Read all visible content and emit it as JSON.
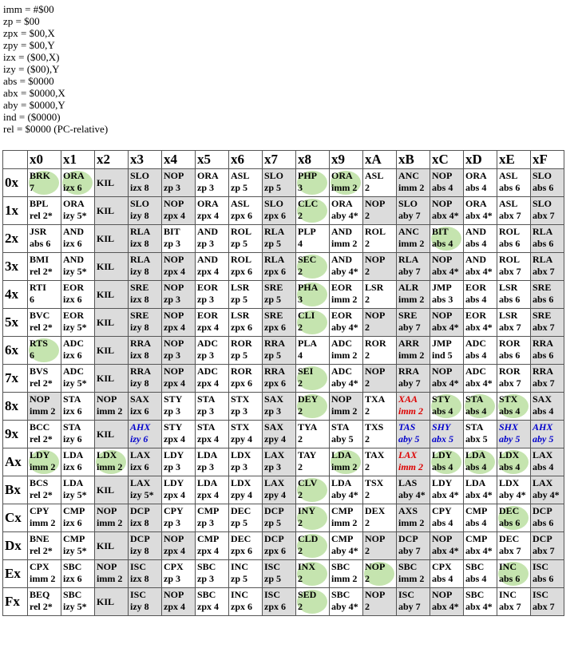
{
  "legend": [
    "imm = #$00",
    "zp = $00",
    "zpx = $00,X",
    "zpy = $00,Y",
    "izx = ($00,X)",
    "izy = ($00),Y",
    "abs = $0000",
    "abx = $0000,X",
    "aby = $0000,Y",
    "ind = ($0000)",
    "rel = $0000 (PC-relative)"
  ],
  "columns": [
    "x0",
    "x1",
    "x2",
    "x3",
    "x4",
    "x5",
    "x6",
    "x7",
    "x8",
    "x9",
    "xA",
    "xB",
    "xC",
    "xD",
    "xE",
    "xF"
  ],
  "colors": {
    "highlight": "#96cd6e",
    "illegal_gray": "#dcdcdc",
    "unstable_blue": "#0000cc",
    "unstable_red": "#dd0000"
  },
  "rows": [
    {
      "label": "0x",
      "cells": [
        [
          "BRK",
          "7",
          "h"
        ],
        [
          "ORA",
          "izx 6",
          "h"
        ],
        [
          "KIL",
          "",
          "k"
        ],
        [
          "SLO",
          "izx 8",
          "i"
        ],
        [
          "NOP",
          "zp 3",
          "i"
        ],
        [
          "ORA",
          "zp 3",
          ""
        ],
        [
          "ASL",
          "zp 5",
          ""
        ],
        [
          "SLO",
          "zp 5",
          "i"
        ],
        [
          "PHP",
          "3",
          "h"
        ],
        [
          "ORA",
          "imm 2",
          "h"
        ],
        [
          "ASL",
          "2",
          ""
        ],
        [
          "ANC",
          "imm 2",
          "i"
        ],
        [
          "NOP",
          "abs 4",
          "i"
        ],
        [
          "ORA",
          "abs 4",
          ""
        ],
        [
          "ASL",
          "abs 6",
          ""
        ],
        [
          "SLO",
          "abs 6",
          "i"
        ]
      ]
    },
    {
      "label": "1x",
      "cells": [
        [
          "BPL",
          "rel 2*",
          ""
        ],
        [
          "ORA",
          "izy 5*",
          ""
        ],
        [
          "KIL",
          "",
          "k"
        ],
        [
          "SLO",
          "izy 8",
          "i"
        ],
        [
          "NOP",
          "zpx 4",
          "i"
        ],
        [
          "ORA",
          "zpx 4",
          ""
        ],
        [
          "ASL",
          "zpx 6",
          ""
        ],
        [
          "SLO",
          "zpx 6",
          "i"
        ],
        [
          "CLC",
          "2",
          "h"
        ],
        [
          "ORA",
          "aby 4*",
          ""
        ],
        [
          "NOP",
          "2",
          "i"
        ],
        [
          "SLO",
          "aby 7",
          "i"
        ],
        [
          "NOP",
          "abx 4*",
          "i"
        ],
        [
          "ORA",
          "abx 4*",
          ""
        ],
        [
          "ASL",
          "abx 7",
          ""
        ],
        [
          "SLO",
          "abx 7",
          "i"
        ]
      ]
    },
    {
      "label": "2x",
      "cells": [
        [
          "JSR",
          "abs 6",
          ""
        ],
        [
          "AND",
          "izx 6",
          ""
        ],
        [
          "KIL",
          "",
          "k"
        ],
        [
          "RLA",
          "izx 8",
          "i"
        ],
        [
          "BIT",
          "zp 3",
          ""
        ],
        [
          "AND",
          "zp 3",
          ""
        ],
        [
          "ROL",
          "zp 5",
          ""
        ],
        [
          "RLA",
          "zp 5",
          "i"
        ],
        [
          "PLP",
          "4",
          ""
        ],
        [
          "AND",
          "imm 2",
          ""
        ],
        [
          "ROL",
          "2",
          ""
        ],
        [
          "ANC",
          "imm 2",
          "i"
        ],
        [
          "BIT",
          "abs 4",
          "h"
        ],
        [
          "AND",
          "abs 4",
          ""
        ],
        [
          "ROL",
          "abs 6",
          ""
        ],
        [
          "RLA",
          "abs 6",
          "i"
        ]
      ]
    },
    {
      "label": "3x",
      "cells": [
        [
          "BMI",
          "rel 2*",
          ""
        ],
        [
          "AND",
          "izy 5*",
          ""
        ],
        [
          "KIL",
          "",
          "k"
        ],
        [
          "RLA",
          "izy 8",
          "i"
        ],
        [
          "NOP",
          "zpx 4",
          "i"
        ],
        [
          "AND",
          "zpx 4",
          ""
        ],
        [
          "ROL",
          "zpx 6",
          ""
        ],
        [
          "RLA",
          "zpx 6",
          "i"
        ],
        [
          "SEC",
          "2",
          "h"
        ],
        [
          "AND",
          "aby 4*",
          ""
        ],
        [
          "NOP",
          "2",
          "i"
        ],
        [
          "RLA",
          "aby 7",
          "i"
        ],
        [
          "NOP",
          "abx 4*",
          "i"
        ],
        [
          "AND",
          "abx 4*",
          ""
        ],
        [
          "ROL",
          "abx 7",
          ""
        ],
        [
          "RLA",
          "abx 7",
          "i"
        ]
      ]
    },
    {
      "label": "4x",
      "cells": [
        [
          "RTI",
          "6",
          ""
        ],
        [
          "EOR",
          "izx 6",
          ""
        ],
        [
          "KIL",
          "",
          "k"
        ],
        [
          "SRE",
          "izx 8",
          "i"
        ],
        [
          "NOP",
          "zp 3",
          "i"
        ],
        [
          "EOR",
          "zp 3",
          ""
        ],
        [
          "LSR",
          "zp 5",
          ""
        ],
        [
          "SRE",
          "zp 5",
          "i"
        ],
        [
          "PHA",
          "3",
          "h"
        ],
        [
          "EOR",
          "imm 2",
          ""
        ],
        [
          "LSR",
          "2",
          ""
        ],
        [
          "ALR",
          "imm 2",
          "i"
        ],
        [
          "JMP",
          "abs 3",
          ""
        ],
        [
          "EOR",
          "abs 4",
          ""
        ],
        [
          "LSR",
          "abs 6",
          ""
        ],
        [
          "SRE",
          "abs 6",
          "i"
        ]
      ]
    },
    {
      "label": "5x",
      "cells": [
        [
          "BVC",
          "rel 2*",
          ""
        ],
        [
          "EOR",
          "izy 5*",
          ""
        ],
        [
          "KIL",
          "",
          "k"
        ],
        [
          "SRE",
          "izy 8",
          "i"
        ],
        [
          "NOP",
          "zpx 4",
          "i"
        ],
        [
          "EOR",
          "zpx 4",
          ""
        ],
        [
          "LSR",
          "zpx 6",
          ""
        ],
        [
          "SRE",
          "zpx 6",
          "i"
        ],
        [
          "CLI",
          "2",
          "h"
        ],
        [
          "EOR",
          "aby 4*",
          ""
        ],
        [
          "NOP",
          "2",
          "i"
        ],
        [
          "SRE",
          "aby 7",
          "i"
        ],
        [
          "NOP",
          "abx 4*",
          "i"
        ],
        [
          "EOR",
          "abx 4*",
          ""
        ],
        [
          "LSR",
          "abx 7",
          ""
        ],
        [
          "SRE",
          "abx 7",
          "i"
        ]
      ]
    },
    {
      "label": "6x",
      "cells": [
        [
          "RTS",
          "6",
          "h"
        ],
        [
          "ADC",
          "izx 6",
          ""
        ],
        [
          "KIL",
          "",
          "k"
        ],
        [
          "RRA",
          "izx 8",
          "i"
        ],
        [
          "NOP",
          "zp 3",
          "i"
        ],
        [
          "ADC",
          "zp 3",
          ""
        ],
        [
          "ROR",
          "zp 5",
          ""
        ],
        [
          "RRA",
          "zp 5",
          "i"
        ],
        [
          "PLA",
          "4",
          ""
        ],
        [
          "ADC",
          "imm 2",
          ""
        ],
        [
          "ROR",
          "2",
          ""
        ],
        [
          "ARR",
          "imm 2",
          "i"
        ],
        [
          "JMP",
          "ind 5",
          ""
        ],
        [
          "ADC",
          "abs 4",
          ""
        ],
        [
          "ROR",
          "abs 6",
          ""
        ],
        [
          "RRA",
          "abs 6",
          "i"
        ]
      ]
    },
    {
      "label": "7x",
      "cells": [
        [
          "BVS",
          "rel 2*",
          ""
        ],
        [
          "ADC",
          "izy 5*",
          ""
        ],
        [
          "KIL",
          "",
          "k"
        ],
        [
          "RRA",
          "izy 8",
          "i"
        ],
        [
          "NOP",
          "zpx 4",
          "i"
        ],
        [
          "ADC",
          "zpx 4",
          ""
        ],
        [
          "ROR",
          "zpx 6",
          ""
        ],
        [
          "RRA",
          "zpx 6",
          "i"
        ],
        [
          "SEI",
          "2",
          "h"
        ],
        [
          "ADC",
          "aby 4*",
          ""
        ],
        [
          "NOP",
          "2",
          "i"
        ],
        [
          "RRA",
          "aby 7",
          "i"
        ],
        [
          "NOP",
          "abx 4*",
          "i"
        ],
        [
          "ADC",
          "abx 4*",
          ""
        ],
        [
          "ROR",
          "abx 7",
          ""
        ],
        [
          "RRA",
          "abx 7",
          "i"
        ]
      ]
    },
    {
      "label": "8x",
      "cells": [
        [
          "NOP",
          "imm 2",
          "i"
        ],
        [
          "STA",
          "izx 6",
          ""
        ],
        [
          "NOP",
          "imm 2",
          "i"
        ],
        [
          "SAX",
          "izx 6",
          "i"
        ],
        [
          "STY",
          "zp 3",
          ""
        ],
        [
          "STA",
          "zp 3",
          ""
        ],
        [
          "STX",
          "zp 3",
          ""
        ],
        [
          "SAX",
          "zp 3",
          "i"
        ],
        [
          "DEY",
          "2",
          "h"
        ],
        [
          "NOP",
          "imm 2",
          "i"
        ],
        [
          "TXA",
          "2",
          ""
        ],
        [
          "XAA",
          "imm 2",
          "r"
        ],
        [
          "STY",
          "abs 4",
          "h"
        ],
        [
          "STA",
          "abs 4",
          "h"
        ],
        [
          "STX",
          "abs 4",
          "h"
        ],
        [
          "SAX",
          "abs 4",
          "i"
        ]
      ]
    },
    {
      "label": "9x",
      "cells": [
        [
          "BCC",
          "rel 2*",
          ""
        ],
        [
          "STA",
          "izy 6",
          ""
        ],
        [
          "KIL",
          "",
          "k"
        ],
        [
          "AHX",
          "izy 6",
          "b"
        ],
        [
          "STY",
          "zpx 4",
          ""
        ],
        [
          "STA",
          "zpx 4",
          ""
        ],
        [
          "STX",
          "zpy 4",
          ""
        ],
        [
          "SAX",
          "zpy 4",
          "i"
        ],
        [
          "TYA",
          "2",
          ""
        ],
        [
          "STA",
          "aby 5",
          ""
        ],
        [
          "TXS",
          "2",
          ""
        ],
        [
          "TAS",
          "aby 5",
          "b"
        ],
        [
          "SHY",
          "abx 5",
          "b"
        ],
        [
          "STA",
          "abx 5",
          ""
        ],
        [
          "SHX",
          "aby 5",
          "b"
        ],
        [
          "AHX",
          "aby 5",
          "b"
        ]
      ]
    },
    {
      "label": "Ax",
      "cells": [
        [
          "LDY",
          "imm 2",
          "h"
        ],
        [
          "LDA",
          "izx 6",
          ""
        ],
        [
          "LDX",
          "imm 2",
          "h"
        ],
        [
          "LAX",
          "izx 6",
          "i"
        ],
        [
          "LDY",
          "zp 3",
          ""
        ],
        [
          "LDA",
          "zp 3",
          ""
        ],
        [
          "LDX",
          "zp 3",
          ""
        ],
        [
          "LAX",
          "zp 3",
          "i"
        ],
        [
          "TAY",
          "2",
          ""
        ],
        [
          "LDA",
          "imm 2",
          "h"
        ],
        [
          "TAX",
          "2",
          ""
        ],
        [
          "LAX",
          "imm 2",
          "r"
        ],
        [
          "LDY",
          "abs 4",
          "h"
        ],
        [
          "LDA",
          "abs 4",
          "h"
        ],
        [
          "LDX",
          "abs 4",
          "h"
        ],
        [
          "LAX",
          "abs 4",
          "i"
        ]
      ]
    },
    {
      "label": "Bx",
      "cells": [
        [
          "BCS",
          "rel 2*",
          ""
        ],
        [
          "LDA",
          "izy 5*",
          ""
        ],
        [
          "KIL",
          "",
          "k"
        ],
        [
          "LAX",
          "izy 5*",
          "i"
        ],
        [
          "LDY",
          "zpx 4",
          ""
        ],
        [
          "LDA",
          "zpx 4",
          ""
        ],
        [
          "LDX",
          "zpy 4",
          ""
        ],
        [
          "LAX",
          "zpy 4",
          "i"
        ],
        [
          "CLV",
          "2",
          "h"
        ],
        [
          "LDA",
          "aby 4*",
          ""
        ],
        [
          "TSX",
          "2",
          ""
        ],
        [
          "LAS",
          "aby 4*",
          "i"
        ],
        [
          "LDY",
          "abx 4*",
          ""
        ],
        [
          "LDA",
          "abx 4*",
          ""
        ],
        [
          "LDX",
          "aby 4*",
          ""
        ],
        [
          "LAX",
          "aby 4*",
          "i"
        ]
      ]
    },
    {
      "label": "Cx",
      "cells": [
        [
          "CPY",
          "imm 2",
          ""
        ],
        [
          "CMP",
          "izx 6",
          ""
        ],
        [
          "NOP",
          "imm 2",
          "i"
        ],
        [
          "DCP",
          "izx 8",
          "i"
        ],
        [
          "CPY",
          "zp 3",
          ""
        ],
        [
          "CMP",
          "zp 3",
          ""
        ],
        [
          "DEC",
          "zp 5",
          ""
        ],
        [
          "DCP",
          "zp 5",
          "i"
        ],
        [
          "INY",
          "2",
          "h"
        ],
        [
          "CMP",
          "imm 2",
          ""
        ],
        [
          "DEX",
          "2",
          ""
        ],
        [
          "AXS",
          "imm 2",
          "i"
        ],
        [
          "CPY",
          "abs 4",
          ""
        ],
        [
          "CMP",
          "abs 4",
          ""
        ],
        [
          "DEC",
          "abs 6",
          "h"
        ],
        [
          "DCP",
          "abs 6",
          "i"
        ]
      ]
    },
    {
      "label": "Dx",
      "cells": [
        [
          "BNE",
          "rel 2*",
          ""
        ],
        [
          "CMP",
          "izy 5*",
          ""
        ],
        [
          "KIL",
          "",
          "k"
        ],
        [
          "DCP",
          "izy 8",
          "i"
        ],
        [
          "NOP",
          "zpx 4",
          "i"
        ],
        [
          "CMP",
          "zpx 4",
          ""
        ],
        [
          "DEC",
          "zpx 6",
          ""
        ],
        [
          "DCP",
          "zpx 6",
          "i"
        ],
        [
          "CLD",
          "2",
          "h"
        ],
        [
          "CMP",
          "aby 4*",
          ""
        ],
        [
          "NOP",
          "2",
          "i"
        ],
        [
          "DCP",
          "aby 7",
          "i"
        ],
        [
          "NOP",
          "abx 4*",
          "i"
        ],
        [
          "CMP",
          "abx 4*",
          ""
        ],
        [
          "DEC",
          "abx 7",
          ""
        ],
        [
          "DCP",
          "abx 7",
          "i"
        ]
      ]
    },
    {
      "label": "Ex",
      "cells": [
        [
          "CPX",
          "imm 2",
          ""
        ],
        [
          "SBC",
          "izx 6",
          ""
        ],
        [
          "NOP",
          "imm 2",
          "i"
        ],
        [
          "ISC",
          "izx 8",
          "i"
        ],
        [
          "CPX",
          "zp 3",
          ""
        ],
        [
          "SBC",
          "zp 3",
          ""
        ],
        [
          "INC",
          "zp 5",
          ""
        ],
        [
          "ISC",
          "zp 5",
          "i"
        ],
        [
          "INX",
          "2",
          "h"
        ],
        [
          "SBC",
          "imm 2",
          ""
        ],
        [
          "NOP",
          "2",
          "h"
        ],
        [
          "SBC",
          "imm 2",
          "i"
        ],
        [
          "CPX",
          "abs 4",
          ""
        ],
        [
          "SBC",
          "abs 4",
          ""
        ],
        [
          "INC",
          "abs 6",
          "h"
        ],
        [
          "ISC",
          "abs 6",
          "i"
        ]
      ]
    },
    {
      "label": "Fx",
      "cells": [
        [
          "BEQ",
          "rel 2*",
          ""
        ],
        [
          "SBC",
          "izy 5*",
          ""
        ],
        [
          "KIL",
          "",
          "k"
        ],
        [
          "ISC",
          "izy 8",
          "i"
        ],
        [
          "NOP",
          "zpx 4",
          "i"
        ],
        [
          "SBC",
          "zpx 4",
          ""
        ],
        [
          "INC",
          "zpx 6",
          ""
        ],
        [
          "ISC",
          "zpx 6",
          "i"
        ],
        [
          "SED",
          "2",
          "h"
        ],
        [
          "SBC",
          "aby 4*",
          ""
        ],
        [
          "NOP",
          "2",
          "i"
        ],
        [
          "ISC",
          "aby 7",
          "i"
        ],
        [
          "NOP",
          "abx 4*",
          "i"
        ],
        [
          "SBC",
          "abx 4*",
          ""
        ],
        [
          "INC",
          "abx 7",
          ""
        ],
        [
          "ISC",
          "abx 7",
          "i"
        ]
      ]
    }
  ]
}
